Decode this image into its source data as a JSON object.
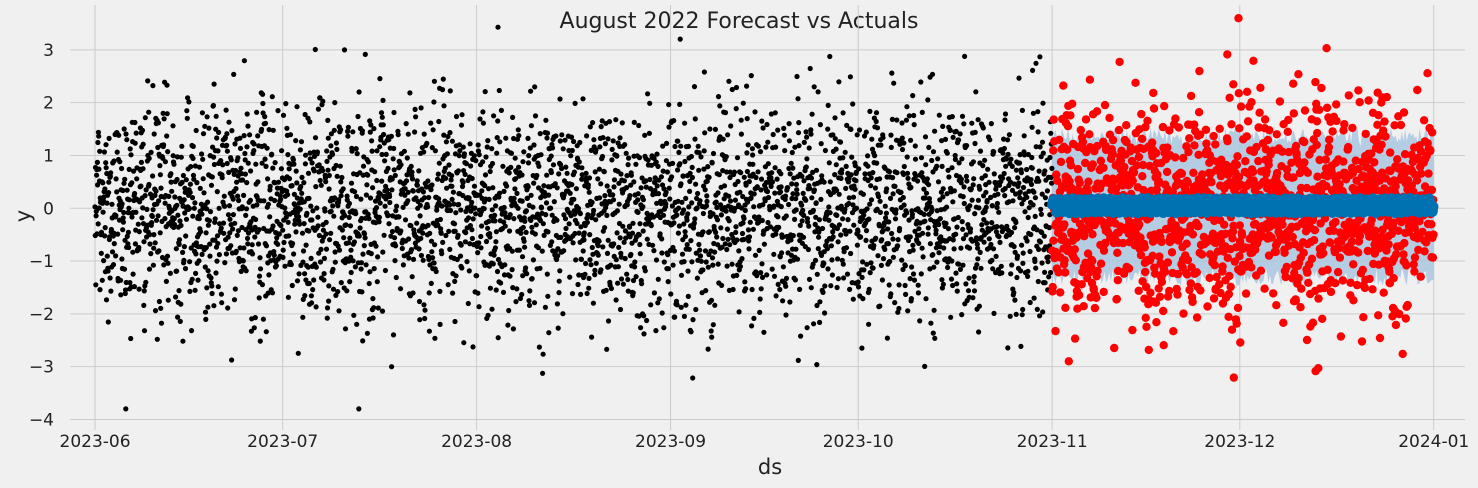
{
  "chart_data": {
    "type": "scatter",
    "title": "August 2022 Forecast vs Actuals",
    "xlabel": "ds",
    "ylabel": "y",
    "xlim": [
      "2023-05-28",
      "2024-01-06"
    ],
    "ylim": [
      -4.2,
      3.85
    ],
    "grid": true,
    "x_ticks": [
      "2023-06",
      "2023-07",
      "2023-08",
      "2023-09",
      "2023-10",
      "2023-11",
      "2023-12",
      "2024-01"
    ],
    "y_ticks": [
      3,
      2,
      1,
      0,
      -1,
      -2,
      -3,
      -4
    ],
    "y_tick_labels": [
      "3",
      "2",
      "1",
      "0",
      "−1",
      "−2",
      "−3",
      "−4"
    ],
    "series": [
      {
        "role": "history_actuals",
        "x_range": [
          "2023-06-01",
          "2023-10-31"
        ],
        "points_per_day": 24,
        "distribution": "standard normal",
        "y_min": -3.8,
        "y_max": 3.6,
        "color": "#000000"
      },
      {
        "role": "forecast_period_actuals",
        "x_range": [
          "2023-11-01",
          "2023-12-31"
        ],
        "points_per_day": 24,
        "distribution": "standard normal",
        "y_min": -3.4,
        "y_max": 3.6,
        "color": "#ff0000"
      },
      {
        "role": "forecast",
        "x_range": [
          "2023-11-01",
          "2023-12-31"
        ],
        "yhat_mean": 0.05,
        "yhat_amplitude": 0.12,
        "color": "#0072b2"
      },
      {
        "role": "forecast_interval",
        "x_range": [
          "2023-11-01",
          "2023-12-31"
        ],
        "lower": -1.3,
        "upper": 1.35,
        "color": "#aac7e0"
      }
    ]
  }
}
